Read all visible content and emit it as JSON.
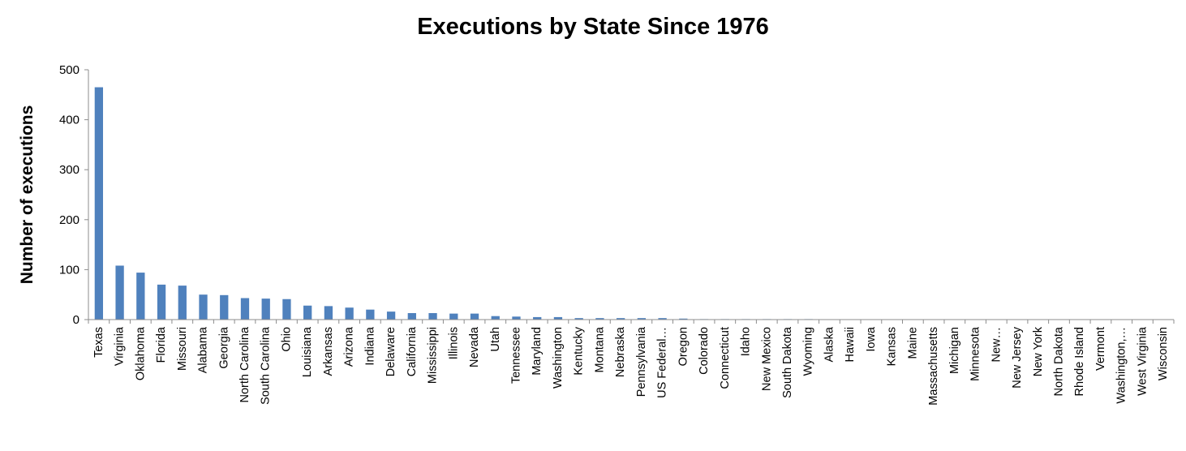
{
  "chart_data": {
    "type": "bar",
    "title": "Executions by State Since 1976",
    "xlabel": "",
    "ylabel": "Number of executions",
    "ylim": [
      0,
      500
    ],
    "yticks": [
      0,
      100,
      200,
      300,
      400,
      500
    ],
    "grid": false,
    "legend": "none",
    "bar_color": "#4f81bd",
    "axis_color": "#8c8c8c",
    "categories": [
      "Texas",
      "Virginia",
      "Oklahoma",
      "Florida",
      "Missouri",
      "Alabama",
      "Georgia",
      "North Carolina",
      "South Carolina",
      "Ohio",
      "Louisiana",
      "Arkansas",
      "Arizona",
      "Indiana",
      "Delaware",
      "California",
      "Mississippi",
      "Illinois",
      "Nevada",
      "Utah",
      "Tennessee",
      "Maryland",
      "Washington",
      "Kentucky",
      "Montana",
      "Nebraska",
      "Pennsylvania",
      "US Federal…",
      "Oregon",
      "Colorado",
      "Connecticut",
      "Idaho",
      "New Mexico",
      "South Dakota",
      "Wyoming",
      "Alaska",
      "Hawaii",
      "Iowa",
      "Kansas",
      "Maine",
      "Massachusetts",
      "Michigan",
      "Minnesota",
      "New…",
      "New Jersey",
      "New York",
      "North Dakota",
      "Rhode Island",
      "Vermont",
      "Washington,…",
      "West Virginia",
      "Wisconsin"
    ],
    "values": [
      465,
      108,
      94,
      70,
      68,
      50,
      49,
      43,
      42,
      41,
      28,
      27,
      24,
      20,
      16,
      13,
      13,
      12,
      12,
      7,
      6,
      5,
      5,
      3,
      3,
      3,
      3,
      3,
      2,
      1,
      1,
      1,
      1,
      1,
      1,
      0,
      0,
      0,
      0,
      0,
      0,
      0,
      0,
      0,
      0,
      0,
      0,
      0,
      0,
      0,
      0,
      0
    ]
  }
}
